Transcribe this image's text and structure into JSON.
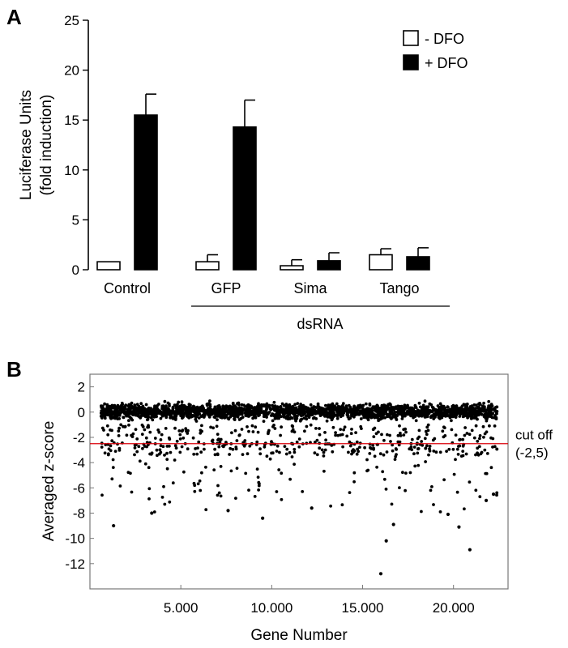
{
  "chart_data": [
    {
      "panel": "A",
      "type": "bar",
      "ylabel_lines": [
        "Luciferase Units",
        "(fold induction)"
      ],
      "ylim": [
        0,
        25
      ],
      "yticks": [
        0,
        5,
        10,
        15,
        20,
        25
      ],
      "categories": [
        "Control",
        "GFP",
        "Sima",
        "Tango"
      ],
      "group_label": "dsRNA",
      "grouped_categories": [
        "GFP",
        "Sima",
        "Tango"
      ],
      "legend_position": "top-right",
      "series": [
        {
          "name": "- DFO",
          "fill": "#ffffff",
          "values": [
            0.8,
            0.8,
            0.4,
            1.5
          ],
          "errors": [
            0,
            0.7,
            0.6,
            0.6
          ]
        },
        {
          "name": "+ DFO",
          "fill": "#000000",
          "values": [
            15.5,
            14.3,
            0.9,
            1.3
          ],
          "errors": [
            2.1,
            2.7,
            0.8,
            0.9
          ]
        }
      ]
    },
    {
      "panel": "B",
      "type": "scatter",
      "xlabel": "Gene Number",
      "ylabel": "Averaged z-score",
      "xlim": [
        0,
        23000
      ],
      "ylim": [
        -14,
        3
      ],
      "xticks": [
        5000,
        10000,
        15000,
        20000
      ],
      "xtick_labels": [
        "5.000",
        "10.000",
        "15.000",
        "20.000"
      ],
      "yticks": [
        2,
        0,
        -2,
        -4,
        -6,
        -8,
        -10,
        -12
      ],
      "cutoff": {
        "value": -2.5,
        "color": "#d9000a",
        "label_lines": [
          "cut off",
          "(-2,5)"
        ]
      },
      "outliers": [
        {
          "x": 16000,
          "y": -12.8
        },
        {
          "x": 16300,
          "y": -10.2
        },
        {
          "x": 16700,
          "y": -8.9
        },
        {
          "x": 20900,
          "y": -10.9
        },
        {
          "x": 20300,
          "y": -9.1
        },
        {
          "x": 1300,
          "y": -9.0
        },
        {
          "x": 9500,
          "y": -8.4
        },
        {
          "x": 3400,
          "y": -8.0
        },
        {
          "x": 7600,
          "y": -7.8
        },
        {
          "x": 12200,
          "y": -7.6
        },
        {
          "x": 19700,
          "y": -8.1
        },
        {
          "x": 21800,
          "y": -7.0
        },
        {
          "x": 22200,
          "y": -6.5
        }
      ]
    }
  ]
}
